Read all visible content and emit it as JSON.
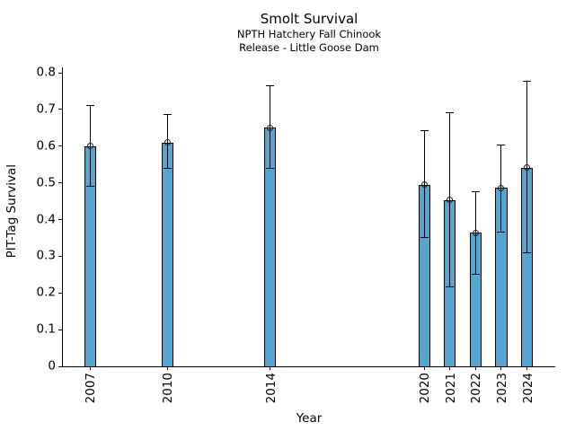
{
  "chart_data": {
    "type": "bar",
    "title": "Smolt Survival",
    "subtitle": [
      "NPTH Hatchery Fall Chinook",
      "Release - Little Goose Dam"
    ],
    "xlabel": "Year",
    "ylabel": "PIT-Tag Survival",
    "categories": [
      "2007",
      "2010",
      "2014",
      "2020",
      "2021",
      "2022",
      "2023",
      "2024"
    ],
    "x_years": [
      2007,
      2010,
      2014,
      2020,
      2021,
      2022,
      2023,
      2024
    ],
    "values": [
      0.6,
      0.61,
      0.65,
      0.495,
      0.453,
      0.364,
      0.486,
      0.542
    ],
    "error_low": [
      0.49,
      0.54,
      0.54,
      0.351,
      0.216,
      0.251,
      0.366,
      0.31
    ],
    "error_high": [
      0.711,
      0.686,
      0.766,
      0.643,
      0.691,
      0.476,
      0.603,
      0.776
    ],
    "yticks": [
      0,
      0.1,
      0.2,
      0.3,
      0.4,
      0.5,
      0.6,
      0.7,
      0.8
    ],
    "ytick_labels": [
      "0",
      "0.1",
      "0.2",
      "0.3",
      "0.4",
      "0.5",
      "0.6",
      "0.7",
      "0.8"
    ],
    "ylim": [
      0,
      0.815
    ],
    "xlim": [
      2005.94,
      2025.1
    ],
    "bar_width_years": 0.46,
    "grid": false,
    "legend": null,
    "marker": "open-circle",
    "colors": {
      "bar_fill": "#56A5D1",
      "bar_edge": "#000000",
      "error_bar": "#000000",
      "marker_edge": "#1a1a1a",
      "text": "#000000",
      "axis": "#000000"
    }
  }
}
